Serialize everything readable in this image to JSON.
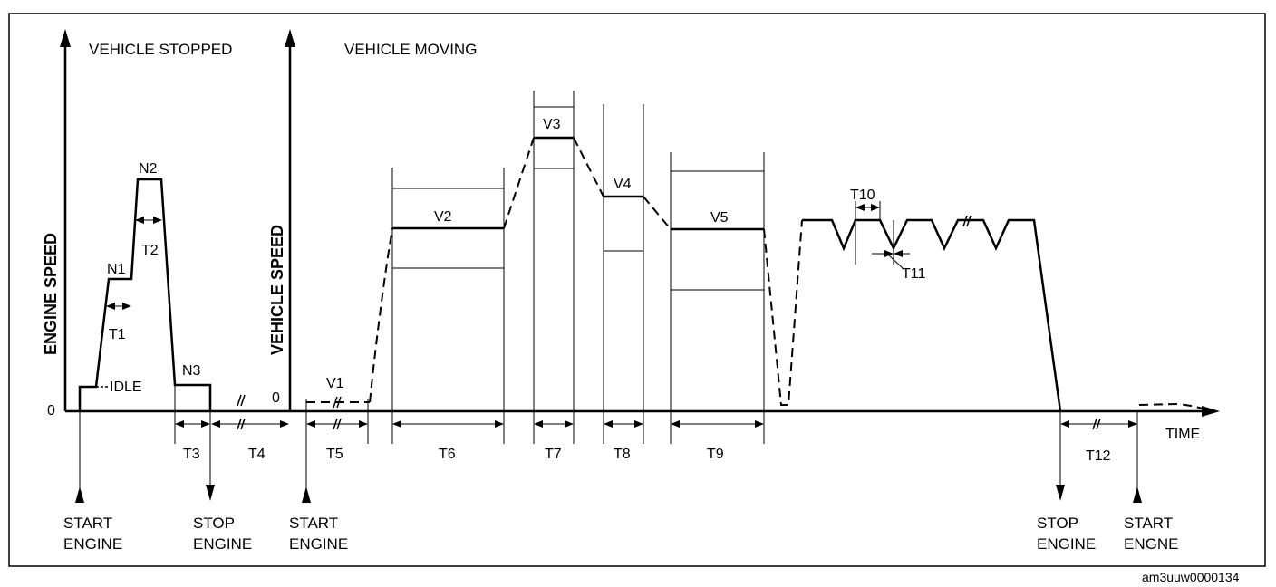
{
  "headings": {
    "stopped": "VEHICLE STOPPED",
    "moving": "VEHICLE MOVING"
  },
  "axes": {
    "engine_speed": "ENGINE SPEED",
    "vehicle_speed": "VEHICLE SPEED",
    "time": "TIME",
    "zero_left": "0",
    "zero_right": "0"
  },
  "labels": {
    "idle": "IDLE",
    "n1": "N1",
    "n2": "N2",
    "n3": "N3",
    "v1": "V1",
    "v2": "V2",
    "v3": "V3",
    "v4": "V4",
    "v5": "V5",
    "t1": "T1",
    "t2": "T2",
    "t3": "T3",
    "t4": "T4",
    "t5": "T5",
    "t6": "T6",
    "t7": "T7",
    "t8": "T8",
    "t9": "T9",
    "t10": "T10",
    "t11": "T11",
    "t12": "T12"
  },
  "events": [
    {
      "line1": "START",
      "line2": "ENGINE"
    },
    {
      "line1": "STOP",
      "line2": "ENGINE"
    },
    {
      "line1": "START",
      "line2": "ENGINE"
    },
    {
      "line1": "STOP",
      "line2": "ENGINE"
    },
    {
      "line1": "START",
      "line2": "ENGNE"
    }
  ],
  "figure_code": "am3uuw0000134"
}
